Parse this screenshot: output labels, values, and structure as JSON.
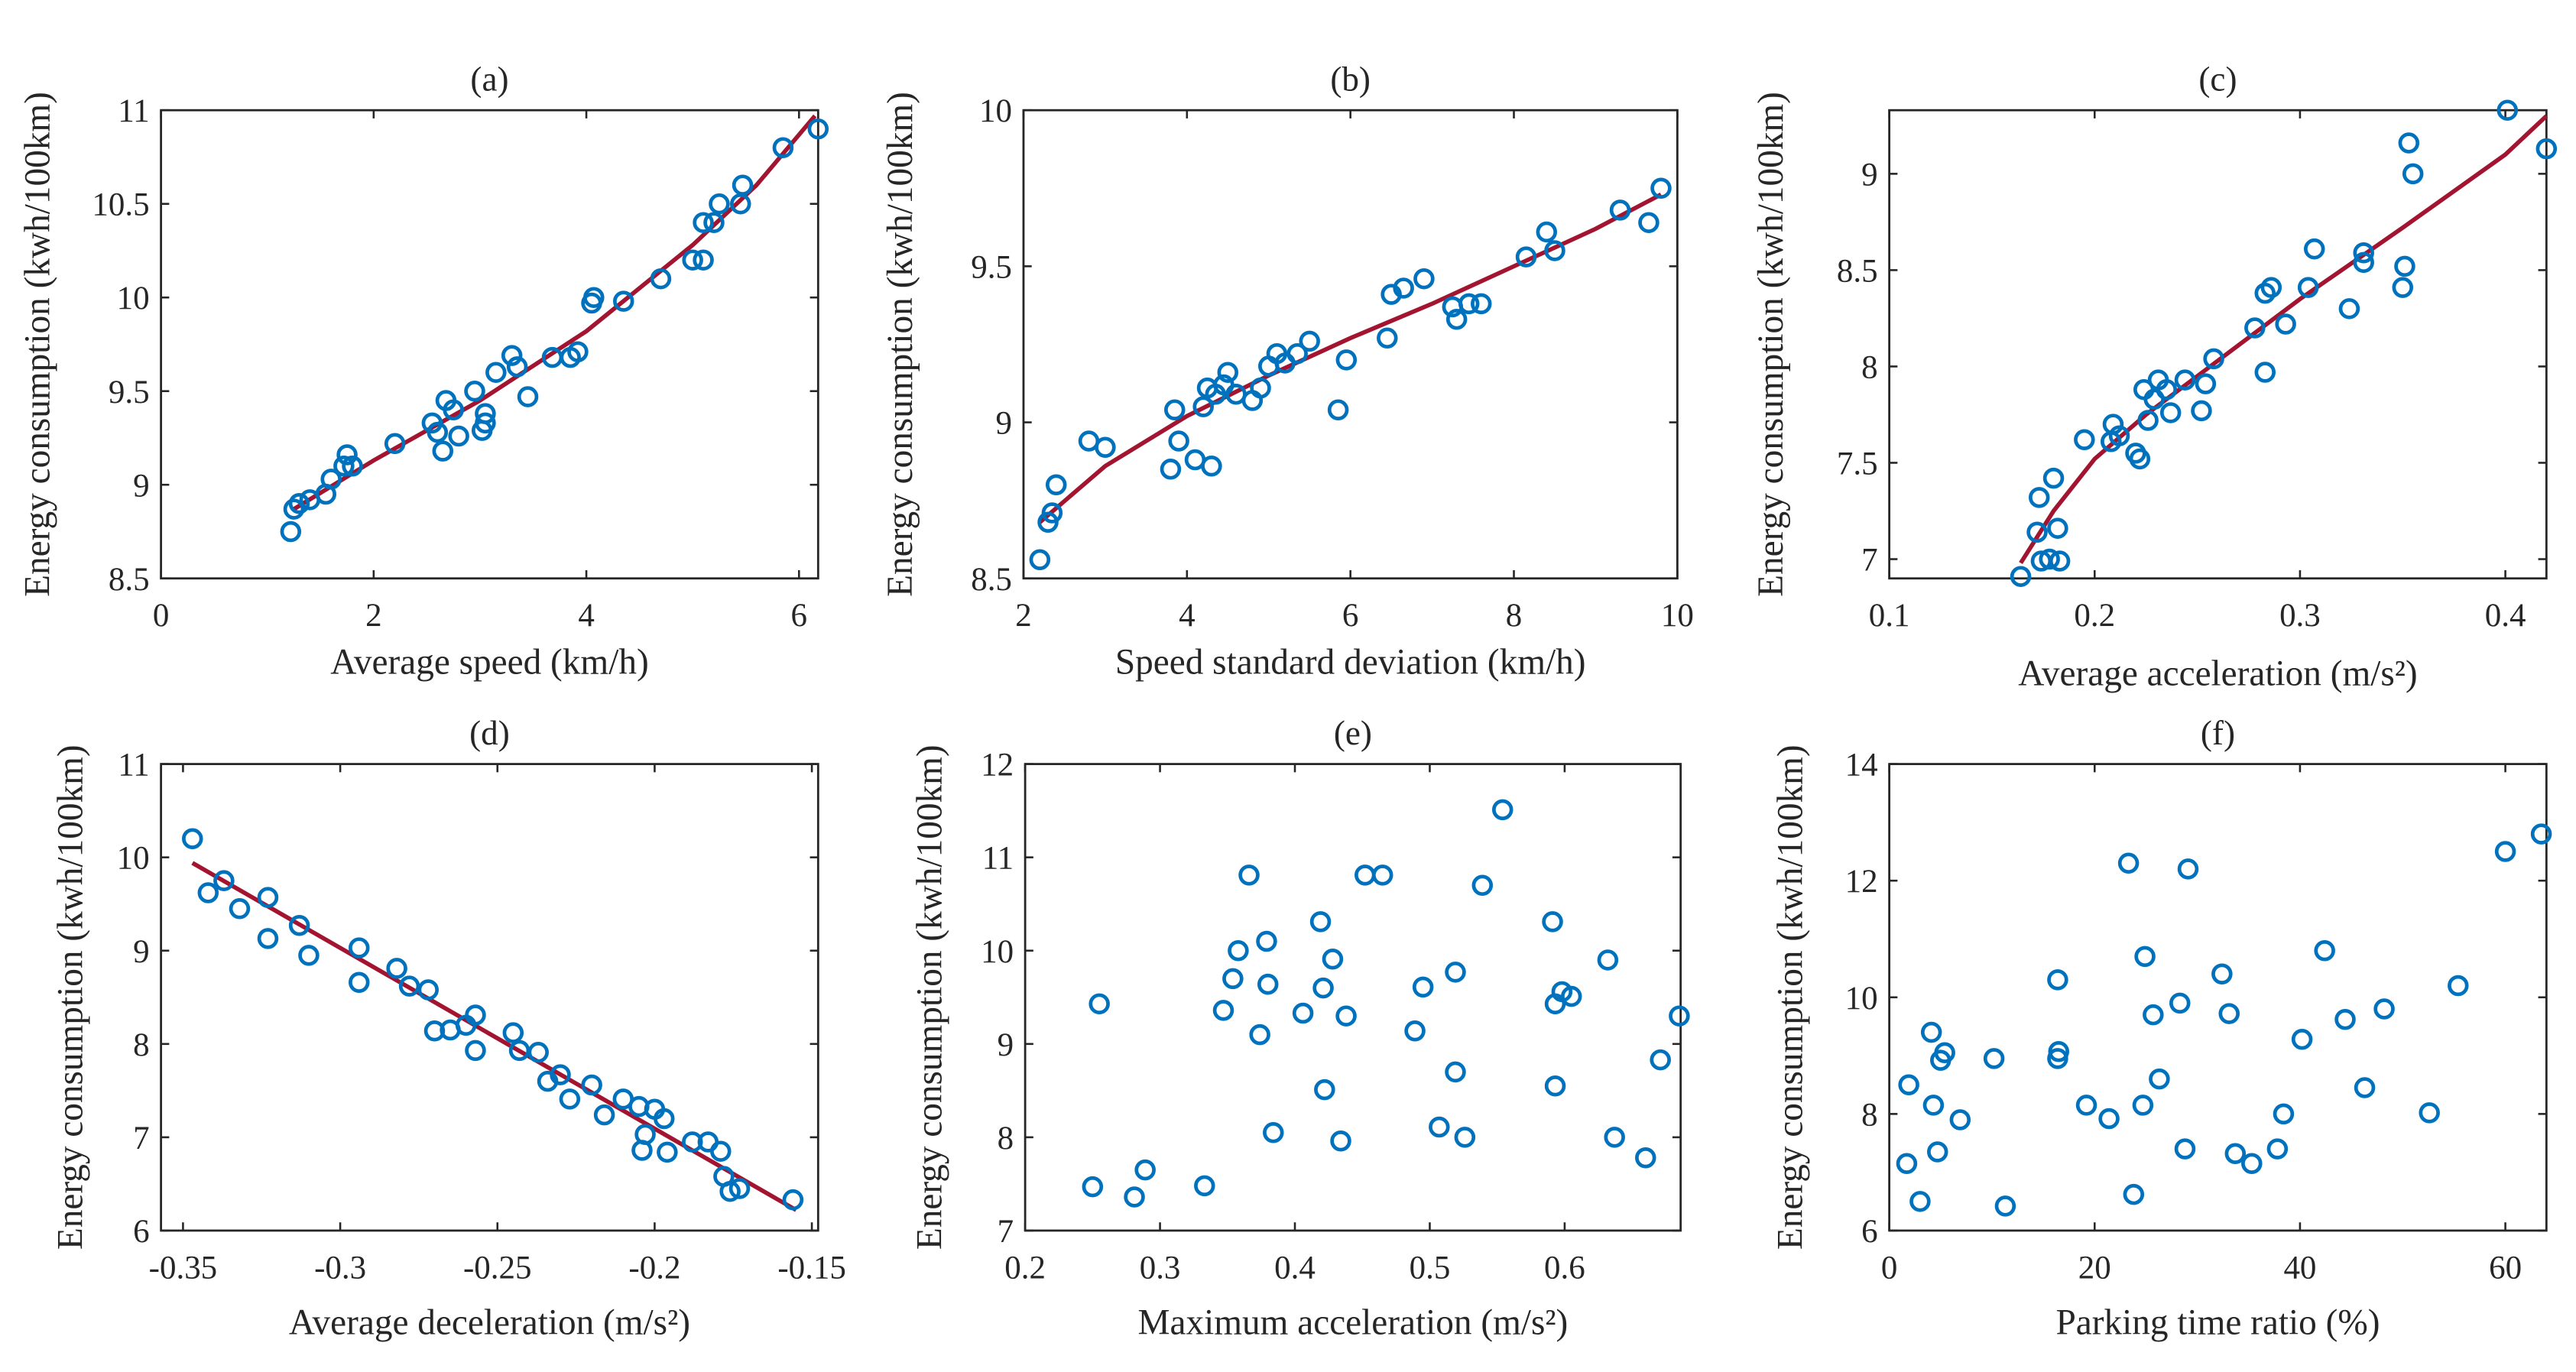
{
  "colors": {
    "marker": "#0072BD",
    "fit": "#A2142F",
    "axis": "#262626"
  },
  "chart_data": [
    {
      "type": "scatter",
      "title": "(a)",
      "xlabel": "Average speed (km/h)",
      "ylabel": "Energy consumption (kwh/100km)",
      "xlim": [
        0,
        6.18
      ],
      "ylim": [
        8.5,
        11
      ],
      "xticks": [
        "0",
        "2",
        "4",
        "6"
      ],
      "yticks": [
        "8.5",
        "9",
        "9.5",
        "10",
        "10.5",
        "11"
      ],
      "points": [
        [
          1.22,
          8.75
        ],
        [
          1.25,
          8.87
        ],
        [
          1.3,
          8.9
        ],
        [
          1.4,
          8.92
        ],
        [
          1.55,
          8.95
        ],
        [
          1.6,
          9.03
        ],
        [
          1.72,
          9.1
        ],
        [
          1.75,
          9.16
        ],
        [
          1.8,
          9.1
        ],
        [
          2.2,
          9.22
        ],
        [
          2.55,
          9.33
        ],
        [
          2.6,
          9.28
        ],
        [
          2.65,
          9.18
        ],
        [
          2.68,
          9.45
        ],
        [
          2.75,
          9.4
        ],
        [
          2.8,
          9.26
        ],
        [
          2.95,
          9.5
        ],
        [
          3.02,
          9.29
        ],
        [
          3.05,
          9.33
        ],
        [
          3.05,
          9.38
        ],
        [
          3.15,
          9.6
        ],
        [
          3.3,
          9.69
        ],
        [
          3.35,
          9.63
        ],
        [
          3.45,
          9.47
        ],
        [
          3.68,
          9.68
        ],
        [
          3.85,
          9.68
        ],
        [
          3.92,
          9.71
        ],
        [
          4.05,
          9.97
        ],
        [
          4.07,
          10.0
        ],
        [
          4.35,
          9.98
        ],
        [
          4.7,
          10.1
        ],
        [
          5.0,
          10.2
        ],
        [
          5.1,
          10.2
        ],
        [
          5.1,
          10.4
        ],
        [
          5.2,
          10.4
        ],
        [
          5.25,
          10.5
        ],
        [
          5.45,
          10.5
        ],
        [
          5.47,
          10.6
        ],
        [
          5.85,
          10.8
        ],
        [
          6.18,
          10.9
        ]
      ],
      "fit": [
        [
          1.25,
          8.87
        ],
        [
          2,
          9.13
        ],
        [
          3,
          9.45
        ],
        [
          4,
          9.82
        ],
        [
          5,
          10.28
        ],
        [
          5.6,
          10.6
        ],
        [
          6.15,
          10.97
        ]
      ]
    },
    {
      "type": "scatter",
      "title": "(b)",
      "xlabel": "Speed standard deviation (km/h)",
      "ylabel": "Energy consumption (kwh/100km)",
      "xlim": [
        2,
        10
      ],
      "ylim": [
        8.5,
        10
      ],
      "xticks": [
        "2",
        "4",
        "6",
        "8",
        "10"
      ],
      "yticks": [
        "8.5",
        "9",
        "9.5",
        "10"
      ],
      "points": [
        [
          2.2,
          8.56
        ],
        [
          2.3,
          8.68
        ],
        [
          2.35,
          8.71
        ],
        [
          2.4,
          8.8
        ],
        [
          2.8,
          8.94
        ],
        [
          3.0,
          8.92
        ],
        [
          3.8,
          8.85
        ],
        [
          3.85,
          9.04
        ],
        [
          3.9,
          8.94
        ],
        [
          4.1,
          8.88
        ],
        [
          4.2,
          9.05
        ],
        [
          4.25,
          9.11
        ],
        [
          4.3,
          8.86
        ],
        [
          4.35,
          9.09
        ],
        [
          4.45,
          9.12
        ],
        [
          4.5,
          9.16
        ],
        [
          4.6,
          9.09
        ],
        [
          4.8,
          9.07
        ],
        [
          4.9,
          9.11
        ],
        [
          5.0,
          9.18
        ],
        [
          5.1,
          9.22
        ],
        [
          5.2,
          9.19
        ],
        [
          5.35,
          9.22
        ],
        [
          5.5,
          9.26
        ],
        [
          5.85,
          9.04
        ],
        [
          5.95,
          9.2
        ],
        [
          6.45,
          9.27
        ],
        [
          6.5,
          9.41
        ],
        [
          6.65,
          9.43
        ],
        [
          6.9,
          9.46
        ],
        [
          7.25,
          9.37
        ],
        [
          7.3,
          9.33
        ],
        [
          7.45,
          9.38
        ],
        [
          7.6,
          9.38
        ],
        [
          8.15,
          9.53
        ],
        [
          8.4,
          9.61
        ],
        [
          8.5,
          9.55
        ],
        [
          9.3,
          9.68
        ],
        [
          9.65,
          9.64
        ],
        [
          9.8,
          9.75
        ]
      ],
      "fit": [
        [
          2.2,
          8.68
        ],
        [
          3,
          8.86
        ],
        [
          4,
          9.02
        ],
        [
          5,
          9.15
        ],
        [
          6,
          9.27
        ],
        [
          7,
          9.38
        ],
        [
          8,
          9.5
        ],
        [
          9,
          9.62
        ],
        [
          9.8,
          9.73
        ]
      ]
    },
    {
      "type": "scatter",
      "title": "(c)",
      "xlabel": "Average acceleration (m/s²)",
      "ylabel": "Energy consumption (kwh/100km)",
      "xlim": [
        0.1,
        0.42
      ],
      "ylim": [
        6.9,
        9.33
      ],
      "xticks": [
        "0.1",
        "0.2",
        "0.3",
        "0.4"
      ],
      "yticks": [
        "7",
        "7.5",
        "8",
        "8.5",
        "9"
      ],
      "points": [
        [
          0.164,
          6.91
        ],
        [
          0.172,
          7.14
        ],
        [
          0.173,
          7.32
        ],
        [
          0.174,
          6.99
        ],
        [
          0.178,
          7.0
        ],
        [
          0.18,
          7.42
        ],
        [
          0.182,
          7.16
        ],
        [
          0.183,
          6.99
        ],
        [
          0.195,
          7.62
        ],
        [
          0.208,
          7.61
        ],
        [
          0.209,
          7.7
        ],
        [
          0.212,
          7.64
        ],
        [
          0.22,
          7.55
        ],
        [
          0.222,
          7.52
        ],
        [
          0.224,
          7.88
        ],
        [
          0.226,
          7.72
        ],
        [
          0.229,
          7.83
        ],
        [
          0.231,
          7.93
        ],
        [
          0.235,
          7.88
        ],
        [
          0.237,
          7.76
        ],
        [
          0.244,
          7.93
        ],
        [
          0.252,
          7.77
        ],
        [
          0.254,
          7.91
        ],
        [
          0.258,
          8.04
        ],
        [
          0.278,
          8.2
        ],
        [
          0.283,
          7.97
        ],
        [
          0.283,
          8.38
        ],
        [
          0.286,
          8.41
        ],
        [
          0.293,
          8.22
        ],
        [
          0.304,
          8.41
        ],
        [
          0.307,
          8.61
        ],
        [
          0.324,
          8.3
        ],
        [
          0.331,
          8.54
        ],
        [
          0.331,
          8.59
        ],
        [
          0.35,
          8.41
        ],
        [
          0.351,
          8.52
        ],
        [
          0.353,
          9.16
        ],
        [
          0.355,
          9.0
        ],
        [
          0.401,
          9.33
        ],
        [
          0.42,
          9.13
        ]
      ],
      "fit": [
        [
          0.164,
          6.98
        ],
        [
          0.18,
          7.25
        ],
        [
          0.2,
          7.52
        ],
        [
          0.225,
          7.75
        ],
        [
          0.25,
          7.95
        ],
        [
          0.3,
          8.35
        ],
        [
          0.35,
          8.72
        ],
        [
          0.4,
          9.1
        ],
        [
          0.42,
          9.3
        ]
      ]
    },
    {
      "type": "scatter",
      "title": "(d)",
      "xlabel": "Average deceleration (m/s²)",
      "ylabel": "Energy consumption (kwh/100km)",
      "xlim": [
        -0.357,
        -0.148
      ],
      "ylim": [
        6,
        11
      ],
      "xticks": [
        "-0.35",
        "-0.3",
        "-0.25",
        "-0.2",
        "-0.15"
      ],
      "yticks": [
        "6",
        "7",
        "8",
        "9",
        "10",
        "11"
      ],
      "points": [
        [
          -0.347,
          10.2
        ],
        [
          -0.342,
          9.62
        ],
        [
          -0.337,
          9.75
        ],
        [
          -0.332,
          9.45
        ],
        [
          -0.323,
          9.57
        ],
        [
          -0.323,
          9.13
        ],
        [
          -0.313,
          9.27
        ],
        [
          -0.31,
          8.95
        ],
        [
          -0.294,
          9.03
        ],
        [
          -0.294,
          8.66
        ],
        [
          -0.282,
          8.81
        ],
        [
          -0.278,
          8.62
        ],
        [
          -0.272,
          8.58
        ],
        [
          -0.27,
          8.14
        ],
        [
          -0.265,
          8.15
        ],
        [
          -0.26,
          8.2
        ],
        [
          -0.257,
          8.31
        ],
        [
          -0.257,
          7.93
        ],
        [
          -0.245,
          8.12
        ],
        [
          -0.243,
          7.93
        ],
        [
          -0.237,
          7.91
        ],
        [
          -0.234,
          7.6
        ],
        [
          -0.23,
          7.67
        ],
        [
          -0.227,
          7.41
        ],
        [
          -0.22,
          7.56
        ],
        [
          -0.216,
          7.24
        ],
        [
          -0.21,
          7.41
        ],
        [
          -0.205,
          7.33
        ],
        [
          -0.204,
          6.86
        ],
        [
          -0.203,
          7.03
        ],
        [
          -0.2,
          7.3
        ],
        [
          -0.197,
          7.2
        ],
        [
          -0.196,
          6.84
        ],
        [
          -0.188,
          6.95
        ],
        [
          -0.183,
          6.95
        ],
        [
          -0.179,
          6.85
        ],
        [
          -0.178,
          6.58
        ],
        [
          -0.176,
          6.42
        ],
        [
          -0.173,
          6.45
        ],
        [
          -0.156,
          6.33
        ]
      ],
      "fit": [
        [
          -0.347,
          9.94
        ],
        [
          -0.155,
          6.22
        ]
      ]
    },
    {
      "type": "scatter",
      "title": "(e)",
      "xlabel": "Maximum acceleration (m/s²)",
      "ylabel": "Energy consumption (kwh/100km)",
      "xlim": [
        0.2,
        0.686
      ],
      "ylim": [
        7,
        12
      ],
      "xticks": [
        "0.2",
        "0.3",
        "0.4",
        "0.5",
        "0.6"
      ],
      "yticks": [
        "7",
        "8",
        "9",
        "10",
        "11",
        "12"
      ],
      "points": [
        [
          0.25,
          7.47
        ],
        [
          0.255,
          9.43
        ],
        [
          0.281,
          7.36
        ],
        [
          0.289,
          7.65
        ],
        [
          0.333,
          7.48
        ],
        [
          0.347,
          9.36
        ],
        [
          0.354,
          9.7
        ],
        [
          0.358,
          10.0
        ],
        [
          0.366,
          10.81
        ],
        [
          0.374,
          9.1
        ],
        [
          0.379,
          10.1
        ],
        [
          0.38,
          9.64
        ],
        [
          0.384,
          8.05
        ],
        [
          0.406,
          9.33
        ],
        [
          0.419,
          10.31
        ],
        [
          0.421,
          9.6
        ],
        [
          0.422,
          8.51
        ],
        [
          0.428,
          9.91
        ],
        [
          0.434,
          7.96
        ],
        [
          0.438,
          9.3
        ],
        [
          0.452,
          10.81
        ],
        [
          0.465,
          10.81
        ],
        [
          0.489,
          9.14
        ],
        [
          0.495,
          9.61
        ],
        [
          0.507,
          8.11
        ],
        [
          0.519,
          9.77
        ],
        [
          0.519,
          8.7
        ],
        [
          0.526,
          8.0
        ],
        [
          0.539,
          10.7
        ],
        [
          0.554,
          11.51
        ],
        [
          0.591,
          10.31
        ],
        [
          0.593,
          9.43
        ],
        [
          0.593,
          8.55
        ],
        [
          0.598,
          9.56
        ],
        [
          0.605,
          9.51
        ],
        [
          0.632,
          9.9
        ],
        [
          0.637,
          8.0
        ],
        [
          0.66,
          7.78
        ],
        [
          0.671,
          8.83
        ],
        [
          0.685,
          9.3
        ]
      ]
    },
    {
      "type": "scatter",
      "title": "(f)",
      "xlabel": "Parking time ratio (%)",
      "ylabel": "Energy consumption (kwh/100km)",
      "xlim": [
        0,
        64
      ],
      "ylim": [
        6,
        14
      ],
      "xticks": [
        "0",
        "20",
        "40",
        "60"
      ],
      "yticks": [
        "6",
        "8",
        "10",
        "12",
        "14"
      ],
      "points": [
        [
          1.7,
          7.15
        ],
        [
          1.9,
          8.5
        ],
        [
          3,
          6.5
        ],
        [
          4.1,
          9.4
        ],
        [
          4.3,
          8.15
        ],
        [
          4.7,
          7.35
        ],
        [
          5,
          8.92
        ],
        [
          5.4,
          9.05
        ],
        [
          6.9,
          7.9
        ],
        [
          10.2,
          8.95
        ],
        [
          11.3,
          6.42
        ],
        [
          16.4,
          10.3
        ],
        [
          16.4,
          8.95
        ],
        [
          16.5,
          9.07
        ],
        [
          19.2,
          8.15
        ],
        [
          21.4,
          7.92
        ],
        [
          23.3,
          12.3
        ],
        [
          23.8,
          6.62
        ],
        [
          24.7,
          8.15
        ],
        [
          24.9,
          10.7
        ],
        [
          25.7,
          9.7
        ],
        [
          26.3,
          8.6
        ],
        [
          28.3,
          9.9
        ],
        [
          28.8,
          7.4
        ],
        [
          29.1,
          12.2
        ],
        [
          32.4,
          10.4
        ],
        [
          33.1,
          9.72
        ],
        [
          33.7,
          7.32
        ],
        [
          35.3,
          7.15
        ],
        [
          37.8,
          7.4
        ],
        [
          38.4,
          8.0
        ],
        [
          40.2,
          9.28
        ],
        [
          42.4,
          10.8
        ],
        [
          44.4,
          9.62
        ],
        [
          46.3,
          8.45
        ],
        [
          48.2,
          9.8
        ],
        [
          52.6,
          8.02
        ],
        [
          55.4,
          10.2
        ],
        [
          60,
          12.5
        ],
        [
          63.5,
          12.8
        ]
      ]
    }
  ]
}
